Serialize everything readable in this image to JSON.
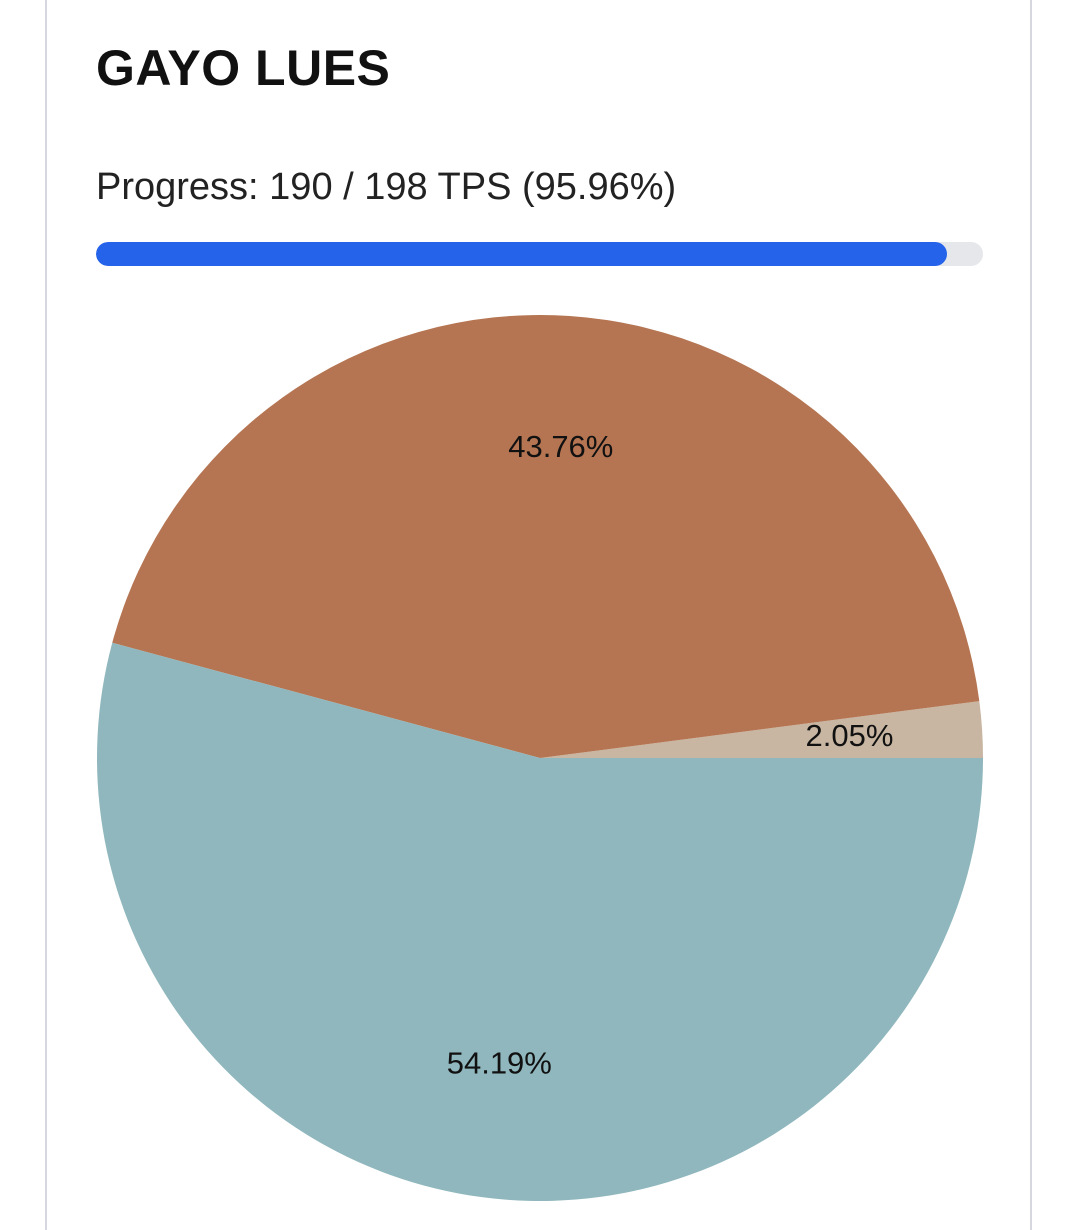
{
  "header": {
    "title": "GAYO LUES"
  },
  "progress": {
    "text": "Progress: 190 / 198 TPS (95.96%)",
    "current": 190,
    "total": 198,
    "percent": 95.96,
    "fill_color": "#2563eb",
    "track_color": "#e5e7eb"
  },
  "chart_data": {
    "type": "pie",
    "title": "",
    "slices": [
      {
        "label": "",
        "value": 2.05,
        "label_text": "2.05%",
        "color": "#c8b6a2"
      },
      {
        "label": "",
        "value": 43.76,
        "label_text": "43.76%",
        "color": "#b57552"
      },
      {
        "label": "",
        "value": 54.19,
        "label_text": "54.19%",
        "color": "#8fb7bd"
      }
    ],
    "legend": "none"
  }
}
